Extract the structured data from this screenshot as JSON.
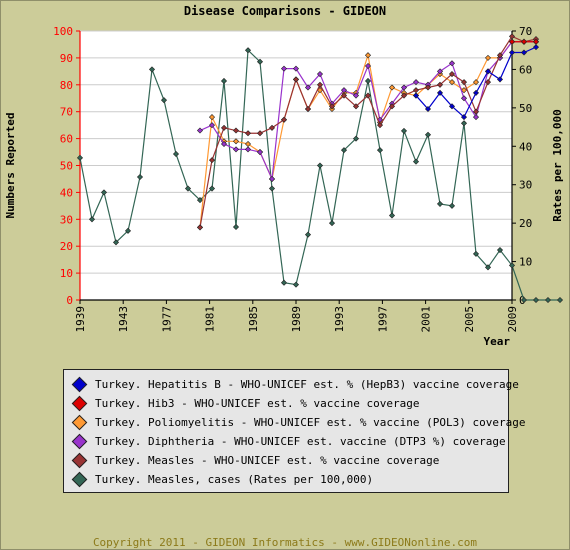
{
  "chart_data": {
    "type": "line",
    "title": "Disease Comparisons - GIDEON",
    "xlabel": "Year",
    "ylabel_left": "Numbers Reported",
    "ylabel_right": "Rates per 100,000",
    "ylim_left": [
      0,
      100
    ],
    "ylim_right": [
      0,
      70
    ],
    "yticks_left": [
      0,
      10,
      20,
      30,
      40,
      50,
      60,
      70,
      80,
      90,
      100
    ],
    "yticks_right": [
      0,
      10,
      20,
      30,
      40,
      50,
      60,
      70
    ],
    "xticks": [
      "1939",
      "1943",
      "1977",
      "1981",
      "1985",
      "1989",
      "1993",
      "1997",
      "2001",
      "2005",
      "2009"
    ],
    "grid": true,
    "legend_position": "bottom",
    "x_slots": 37,
    "series": [
      {
        "name": "Turkey. Hepatitis B - WHO-UNICEF est. % (HepB3) vaccine coverage",
        "color": "#0000cc",
        "axis": "left",
        "points": [
          [
            1998,
            76
          ],
          [
            1999,
            71
          ],
          [
            2000,
            77
          ],
          [
            2001,
            72
          ],
          [
            2002,
            68
          ],
          [
            2003,
            77
          ],
          [
            2004,
            85
          ],
          [
            2005,
            82
          ],
          [
            2006,
            92
          ],
          [
            2007,
            92
          ],
          [
            2008,
            94
          ]
        ]
      },
      {
        "name": "Turkey. Hib3 - WHO-UNICEF est. % vaccine coverage",
        "color": "#dd0000",
        "axis": "left",
        "points": [
          [
            2006,
            96
          ],
          [
            2007,
            96
          ],
          [
            2008,
            96
          ]
        ]
      },
      {
        "name": "Turkey. Poliomyelitis - WHO-UNICEF est. % vaccine (POL3) coverage",
        "color": "#ff9933",
        "axis": "left",
        "points": [
          [
            1980,
            27
          ],
          [
            1981,
            68
          ],
          [
            1982,
            59
          ],
          [
            1983,
            59
          ],
          [
            1984,
            58
          ],
          [
            1985,
            55
          ],
          [
            1986,
            45
          ],
          [
            1987,
            67
          ],
          [
            1988,
            82
          ],
          [
            1989,
            71
          ],
          [
            1990,
            78
          ],
          [
            1991,
            71
          ],
          [
            1992,
            77
          ],
          [
            1993,
            77
          ],
          [
            1994,
            91
          ],
          [
            1995,
            66
          ],
          [
            1996,
            79
          ],
          [
            1997,
            77
          ],
          [
            1998,
            76
          ],
          [
            1999,
            80
          ],
          [
            2000,
            84
          ],
          [
            2001,
            81
          ],
          [
            2002,
            78
          ],
          [
            2003,
            81
          ],
          [
            2004,
            90
          ],
          [
            2005,
            90
          ],
          [
            2006,
            96
          ],
          [
            2007,
            96
          ],
          [
            2008,
            96
          ]
        ]
      },
      {
        "name": "Turkey. Diphtheria - WHO-UNICEF est. vaccine (DTP3 %) coverage",
        "color": "#9933cc",
        "axis": "left",
        "points": [
          [
            1980,
            63
          ],
          [
            1981,
            65
          ],
          [
            1982,
            58
          ],
          [
            1983,
            56
          ],
          [
            1984,
            56
          ],
          [
            1985,
            55
          ],
          [
            1986,
            45
          ],
          [
            1987,
            86
          ],
          [
            1988,
            86
          ],
          [
            1989,
            79
          ],
          [
            1990,
            84
          ],
          [
            1991,
            73
          ],
          [
            1992,
            78
          ],
          [
            1993,
            76
          ],
          [
            1994,
            87
          ],
          [
            1995,
            67
          ],
          [
            1996,
            73
          ],
          [
            1997,
            79
          ],
          [
            1998,
            81
          ],
          [
            1999,
            80
          ],
          [
            2000,
            85
          ],
          [
            2001,
            88
          ],
          [
            2002,
            75
          ],
          [
            2003,
            68
          ],
          [
            2004,
            85
          ],
          [
            2005,
            90
          ],
          [
            2006,
            96
          ],
          [
            2007,
            96
          ],
          [
            2008,
            96
          ]
        ]
      },
      {
        "name": "Turkey. Measles - WHO-UNICEF est. % vaccine coverage",
        "color": "#993333",
        "axis": "left",
        "points": [
          [
            1980,
            27
          ],
          [
            1981,
            52
          ],
          [
            1982,
            64
          ],
          [
            1983,
            63
          ],
          [
            1984,
            62
          ],
          [
            1985,
            62
          ],
          [
            1986,
            64
          ],
          [
            1987,
            67
          ],
          [
            1988,
            82
          ],
          [
            1989,
            71
          ],
          [
            1990,
            80
          ],
          [
            1991,
            72
          ],
          [
            1992,
            76
          ],
          [
            1993,
            72
          ],
          [
            1994,
            76
          ],
          [
            1995,
            65
          ],
          [
            1996,
            72
          ],
          [
            1997,
            76
          ],
          [
            1998,
            78
          ],
          [
            1999,
            79
          ],
          [
            2000,
            80
          ],
          [
            2001,
            84
          ],
          [
            2002,
            81
          ],
          [
            2003,
            70
          ],
          [
            2004,
            81
          ],
          [
            2005,
            91
          ],
          [
            2006,
            98
          ],
          [
            2007,
            96
          ],
          [
            2008,
            97
          ]
        ]
      },
      {
        "name": "Turkey. Measles, cases (Rates per 100,000)",
        "color": "#336655",
        "axis": "right",
        "points": [
          [
            1939,
            37
          ],
          [
            1940,
            21
          ],
          [
            1941,
            28
          ],
          [
            1942,
            15
          ],
          [
            1943,
            18
          ],
          [
            1944,
            32
          ],
          [
            1945,
            60
          ],
          [
            1946,
            52
          ],
          [
            1947,
            38
          ],
          [
            1948,
            29
          ],
          [
            1949,
            26
          ],
          [
            1950,
            29
          ],
          [
            1951,
            57
          ],
          [
            1952,
            19
          ],
          [
            1953,
            65
          ],
          [
            1954,
            62
          ],
          [
            1955,
            29
          ],
          [
            1956,
            4.5
          ],
          [
            1957,
            4
          ],
          [
            1958,
            17
          ],
          [
            1959,
            35
          ],
          [
            1960,
            20
          ],
          [
            1961,
            39
          ],
          [
            1962,
            42
          ],
          [
            1963,
            57
          ],
          [
            1964,
            39
          ],
          [
            1965,
            22
          ],
          [
            1966,
            44
          ],
          [
            1967,
            36
          ],
          [
            1968,
            43
          ],
          [
            1969,
            25
          ],
          [
            1970,
            24.5
          ],
          [
            1971,
            46
          ],
          [
            1972,
            12
          ],
          [
            1973,
            8.5
          ],
          [
            1974,
            13
          ],
          [
            1975,
            9
          ],
          [
            1976,
            0
          ],
          [
            1977,
            0
          ],
          [
            1978,
            0
          ],
          [
            1979,
            0
          ]
        ]
      }
    ]
  },
  "legend": [
    {
      "label": "Turkey. Hepatitis B - WHO-UNICEF est. % (HepB3) vaccine coverage",
      "color": "#0000cc"
    },
    {
      "label": "Turkey. Hib3 - WHO-UNICEF est. % vaccine coverage",
      "color": "#dd0000"
    },
    {
      "label": "Turkey. Poliomyelitis - WHO-UNICEF est. % vaccine (POL3) coverage",
      "color": "#ff9933"
    },
    {
      "label": "Turkey. Diphtheria - WHO-UNICEF est. vaccine (DTP3 %) coverage",
      "color": "#9933cc"
    },
    {
      "label": "Turkey. Measles - WHO-UNICEF est. % vaccine coverage",
      "color": "#993333"
    },
    {
      "label": "Turkey. Measles, cases (Rates per 100,000)",
      "color": "#336655"
    }
  ],
  "footer": "Copyright 2011 - GIDEON Informatics - www.GIDEONonline.com",
  "colors": {
    "background": "#cccc99",
    "plot": "#ffffff",
    "left_axis": "#ff0000",
    "right_axis": "#000000",
    "grid": "#cccccc"
  }
}
